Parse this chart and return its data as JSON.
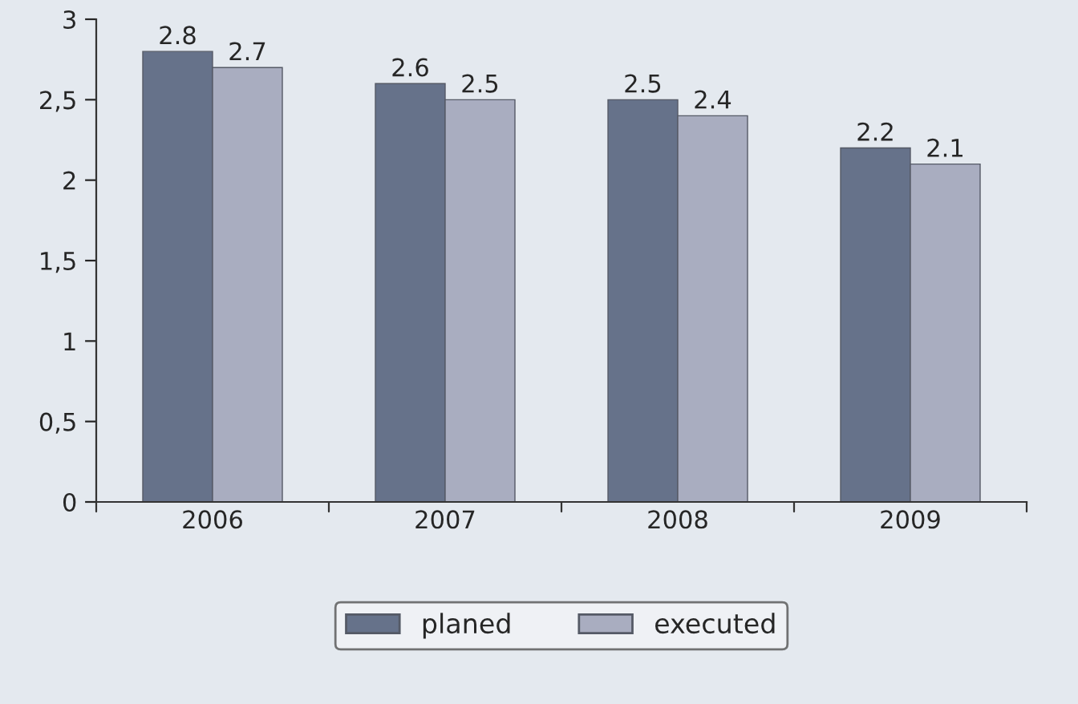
{
  "chart_data": {
    "type": "bar",
    "categories": [
      "2006",
      "2007",
      "2008",
      "2009"
    ],
    "series": [
      {
        "name": "planed",
        "color": "#66728a",
        "values": [
          2.8,
          2.6,
          2.5,
          2.2
        ]
      },
      {
        "name": "executed",
        "color": "#a9adc0",
        "values": [
          2.7,
          2.5,
          2.4,
          2.1
        ]
      }
    ],
    "ylim": [
      0,
      3
    ],
    "yticks": [
      0,
      {
        "value": 0.5,
        "label": "0,5"
      },
      1,
      {
        "value": 1.5,
        "label": "1,5"
      },
      2,
      {
        "value": 2.5,
        "label": "2,5"
      },
      3
    ],
    "data_labels": true,
    "grid": false,
    "legend": "bottom"
  }
}
